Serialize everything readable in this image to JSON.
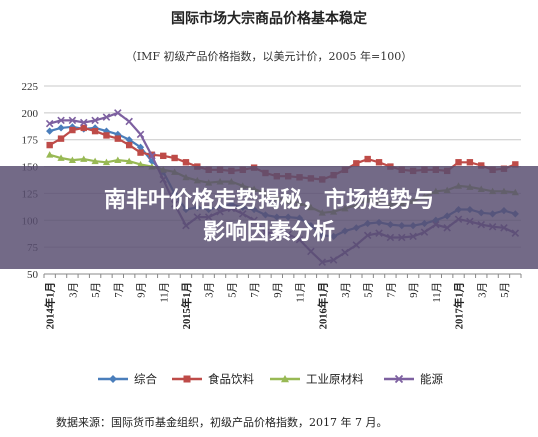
{
  "title": "国际市场大宗商品价格基本稳定",
  "subtitle": "（IMF 初级产品价格指数，以美元计价，2005 年=100）",
  "source": "数据来源：国际货币基金组织，初级产品价格指数，2017 年 7 月。",
  "overlay": {
    "line1": "南非叶价格走势揭秘，市场趋势与",
    "line2": "影响因素分析"
  },
  "chart_data": {
    "type": "line",
    "title": "国际市场大宗商品价格基本稳定",
    "ylim": [
      50,
      225
    ],
    "yticks": [
      50,
      75,
      100,
      125,
      150,
      175,
      200,
      225
    ],
    "grid": true,
    "legend_position": "bottom",
    "x": [
      "2014年1月",
      "2月",
      "3月",
      "4月",
      "5月",
      "6月",
      "7月",
      "8月",
      "9月",
      "10月",
      "11月",
      "12月",
      "2015年1月",
      "2月",
      "3月",
      "4月",
      "5月",
      "6月",
      "7月",
      "8月",
      "9月",
      "10月",
      "11月",
      "12月",
      "2016年1月",
      "2月",
      "3月",
      "4月",
      "5月",
      "6月",
      "7月",
      "8月",
      "9月",
      "10月",
      "11月",
      "12月",
      "2017年1月",
      "2月",
      "3月",
      "4月",
      "5月",
      "6月"
    ],
    "x_tick_labels": [
      "2014年1月",
      "3月",
      "5月",
      "7月",
      "9月",
      "11月",
      "2015年1月",
      "3月",
      "5月",
      "7月",
      "9月",
      "11月",
      "2016年1月",
      "3月",
      "5月",
      "7月",
      "9月",
      "11月",
      "2017年1月",
      "3月",
      "5月"
    ],
    "series": [
      {
        "name": "综合",
        "color": "#4a7ebb",
        "marker": "diamond",
        "values": [
          183,
          186,
          187,
          185,
          186,
          183,
          180,
          175,
          168,
          155,
          145,
          125,
          110,
          112,
          110,
          113,
          115,
          112,
          110,
          105,
          103,
          103,
          102,
          95,
          86,
          85,
          90,
          93,
          97,
          98,
          96,
          95,
          95,
          97,
          100,
          104,
          110,
          110,
          107,
          106,
          109,
          106
        ]
      },
      {
        "name": "食品饮料",
        "color": "#be4b48",
        "marker": "square",
        "values": [
          170,
          176,
          184,
          186,
          183,
          179,
          176,
          170,
          163,
          161,
          160,
          158,
          154,
          150,
          147,
          147,
          146,
          147,
          149,
          144,
          141,
          141,
          140,
          139,
          138,
          142,
          147,
          153,
          157,
          154,
          150,
          147,
          146,
          147,
          147,
          146,
          154,
          154,
          151,
          147,
          148,
          152
        ]
      },
      {
        "name": "工业原材料",
        "color": "#98b954",
        "marker": "triangle",
        "values": [
          161,
          158,
          156,
          157,
          155,
          154,
          156,
          155,
          152,
          150,
          147,
          145,
          140,
          137,
          135,
          136,
          136,
          132,
          129,
          125,
          121,
          118,
          116,
          112,
          107,
          108,
          111,
          114,
          119,
          117,
          115,
          116,
          118,
          122,
          127,
          128,
          132,
          131,
          129,
          127,
          127,
          126
        ]
      },
      {
        "name": "能源",
        "color": "#7d60a0",
        "marker": "cross",
        "values": [
          190,
          193,
          193,
          191,
          193,
          196,
          200,
          192,
          180,
          160,
          138,
          115,
          95,
          103,
          103,
          108,
          111,
          106,
          100,
          89,
          87,
          87,
          82,
          71,
          61,
          63,
          70,
          77,
          86,
          88,
          84,
          84,
          85,
          89,
          96,
          93,
          101,
          99,
          96,
          94,
          93,
          88
        ]
      }
    ]
  }
}
